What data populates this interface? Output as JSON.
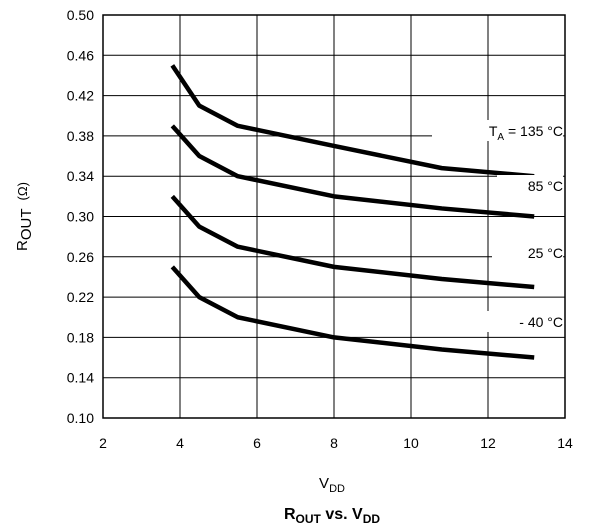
{
  "chart_data": {
    "type": "line",
    "title": {
      "main": "R",
      "main_sub": "OUT",
      "mid": " vs. V",
      "end_sub": "DD"
    },
    "xlabel": {
      "main": "V",
      "sub": "DD"
    },
    "ylabel": {
      "main": "R",
      "sub": "OUT",
      "unit": "(Ω)"
    },
    "xlim": [
      2,
      14
    ],
    "ylim": [
      0.1,
      0.5
    ],
    "x_ticks": [
      "2",
      "4",
      "6",
      "8",
      "10",
      "12",
      "14"
    ],
    "y_ticks": [
      "0.10",
      "0.14",
      "0.18",
      "0.22",
      "0.26",
      "0.30",
      "0.34",
      "0.38",
      "0.42",
      "0.46",
      "0.50"
    ],
    "grid": true,
    "series": [
      {
        "name": "135 °C",
        "label_prefix": "T",
        "label_prefix_sub": "A",
        "label_eq": " = ",
        "x": [
          3.8,
          4.5,
          5.5,
          8,
          10.8,
          13.2
        ],
        "values": [
          0.45,
          0.41,
          0.39,
          0.37,
          0.348,
          0.34
        ]
      },
      {
        "name": "85 °C",
        "x": [
          3.8,
          4.5,
          5.5,
          8,
          10.8,
          13.2
        ],
        "values": [
          0.39,
          0.36,
          0.34,
          0.32,
          0.308,
          0.3
        ]
      },
      {
        "name": "25 °C",
        "x": [
          3.8,
          4.5,
          5.5,
          8,
          10.8,
          13.2
        ],
        "values": [
          0.32,
          0.29,
          0.27,
          0.25,
          0.238,
          0.23
        ]
      },
      {
        "name": "- 40 °C",
        "x": [
          3.8,
          4.5,
          5.5,
          8,
          10.8,
          13.2
        ],
        "values": [
          0.25,
          0.22,
          0.2,
          0.18,
          0.168,
          0.16
        ]
      }
    ]
  }
}
